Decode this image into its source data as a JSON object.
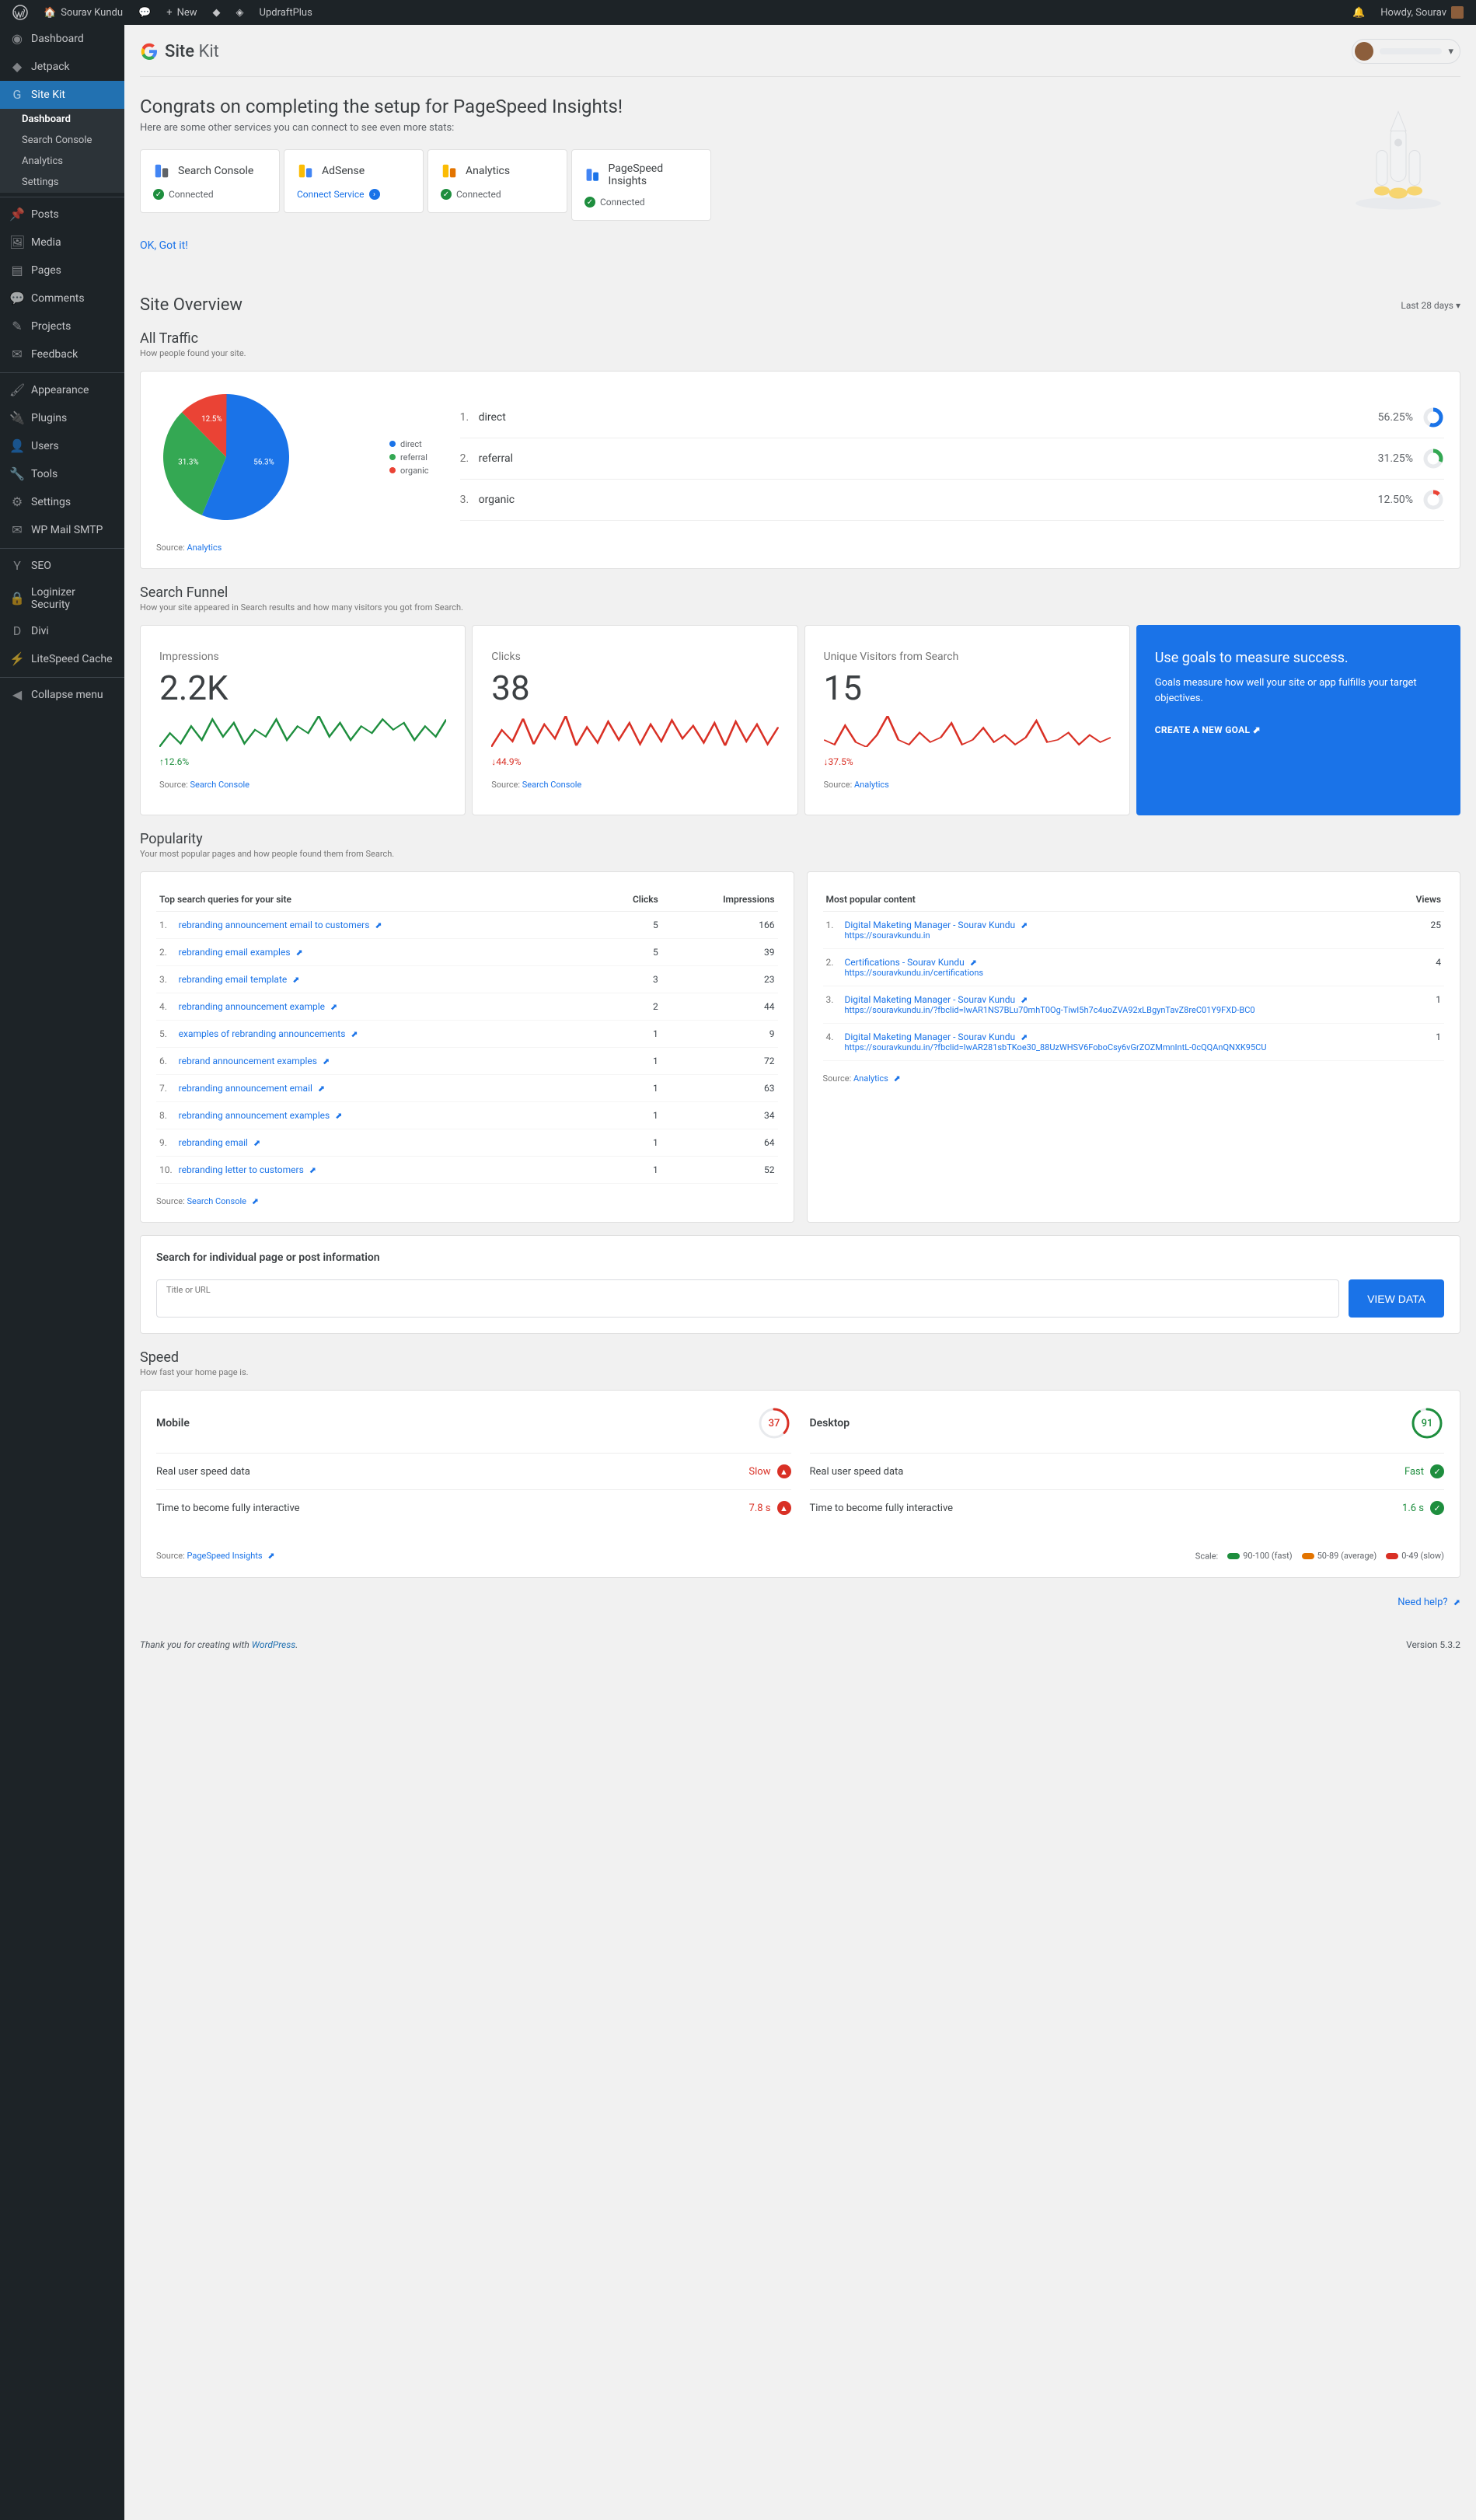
{
  "adminbar": {
    "site_name": "Sourav Kundu",
    "new_label": "New",
    "updraft": "UpdraftPlus",
    "howdy": "Howdy, Sourav"
  },
  "sidebar": {
    "items": [
      {
        "label": "Dashboard",
        "icon": "◉"
      },
      {
        "label": "Jetpack",
        "icon": "◆"
      },
      {
        "label": "Site Kit",
        "icon": "G",
        "active": true,
        "sub": [
          {
            "label": "Dashboard",
            "active": true
          },
          {
            "label": "Search Console"
          },
          {
            "label": "Analytics"
          },
          {
            "label": "Settings"
          }
        ]
      },
      {
        "label": "Posts",
        "icon": "📌",
        "sep": true
      },
      {
        "label": "Media",
        "icon": "🖼"
      },
      {
        "label": "Pages",
        "icon": "▤"
      },
      {
        "label": "Comments",
        "icon": "💬"
      },
      {
        "label": "Projects",
        "icon": "✎"
      },
      {
        "label": "Feedback",
        "icon": "✉"
      },
      {
        "label": "Appearance",
        "icon": "🖌",
        "sep": true
      },
      {
        "label": "Plugins",
        "icon": "🔌"
      },
      {
        "label": "Users",
        "icon": "👤"
      },
      {
        "label": "Tools",
        "icon": "🔧"
      },
      {
        "label": "Settings",
        "icon": "⚙"
      },
      {
        "label": "WP Mail SMTP",
        "icon": "✉"
      },
      {
        "label": "SEO",
        "icon": "Y",
        "sep": true
      },
      {
        "label": "Loginizer Security",
        "icon": "🔒"
      },
      {
        "label": "Divi",
        "icon": "D"
      },
      {
        "label": "LiteSpeed Cache",
        "icon": "⚡"
      },
      {
        "label": "Collapse menu",
        "icon": "◀",
        "sep": true
      }
    ]
  },
  "sitekit_header": {
    "word1": "Site",
    "word2": "Kit"
  },
  "congrats": {
    "title": "Congrats on completing the setup for PageSpeed Insights!",
    "subtitle": "Here are some other services you can connect to see even more stats:",
    "ok": "OK, Got it!",
    "services": [
      {
        "name": "Search Console",
        "status": "Connected",
        "connected": true,
        "colors": [
          "#4285f4",
          "#5f6368"
        ]
      },
      {
        "name": "AdSense",
        "status": "Connect Service",
        "connected": false,
        "colors": [
          "#fbbc04",
          "#4285f4"
        ]
      },
      {
        "name": "Analytics",
        "status": "Connected",
        "connected": true,
        "colors": [
          "#fbbc04",
          "#e37400"
        ]
      },
      {
        "name": "PageSpeed Insights",
        "status": "Connected",
        "connected": true,
        "colors": [
          "#4285f4",
          "#1a73e8"
        ]
      }
    ]
  },
  "overview": {
    "title": "Site Overview",
    "date_label": "Last 28 days"
  },
  "traffic": {
    "title": "All Traffic",
    "subtitle": "How people found your site.",
    "source_label": "Source:",
    "source_name": "Analytics",
    "legend": [
      {
        "label": "direct",
        "color": "#1a73e8"
      },
      {
        "label": "referral",
        "color": "#34a853"
      },
      {
        "label": "organic",
        "color": "#ea4335"
      }
    ],
    "slices": [
      {
        "label": "direct",
        "pct": 56.3,
        "color": "#1a73e8"
      },
      {
        "label": "referral",
        "pct": 31.3,
        "color": "#34a853"
      },
      {
        "label": "organic",
        "pct": 12.5,
        "color": "#ea4335"
      }
    ],
    "rows": [
      {
        "n": "1.",
        "label": "direct",
        "pct": "56.25%",
        "color": "#1a73e8",
        "val": 56.25
      },
      {
        "n": "2.",
        "label": "referral",
        "pct": "31.25%",
        "color": "#34a853",
        "val": 31.25
      },
      {
        "n": "3.",
        "label": "organic",
        "pct": "12.50%",
        "color": "#ea4335",
        "val": 12.5
      }
    ]
  },
  "funnel": {
    "title": "Search Funnel",
    "subtitle": "How your site appeared in Search results and how many visitors you got from Search.",
    "metrics": [
      {
        "label": "Impressions",
        "value": "2.2K",
        "delta": "12.6%",
        "dir": "up",
        "color": "#1e8e3e",
        "source": "Search Console",
        "spark": [
          18,
          22,
          19,
          24,
          20,
          26,
          21,
          25,
          19,
          23,
          21,
          26,
          20,
          24,
          22,
          27,
          21,
          25,
          20,
          24,
          22,
          26,
          23,
          25,
          20,
          24,
          21,
          26
        ]
      },
      {
        "label": "Clicks",
        "value": "38",
        "delta": "44.9%",
        "dir": "down",
        "color": "#d93025",
        "source": "Search Console",
        "spark": [
          8,
          20,
          12,
          28,
          10,
          24,
          14,
          30,
          9,
          22,
          11,
          26,
          13,
          25,
          10,
          24,
          12,
          27,
          14,
          23,
          11,
          25,
          9,
          26,
          12,
          24,
          10,
          22
        ]
      },
      {
        "label": "Unique Visitors from Search",
        "value": "15",
        "delta": "37.5%",
        "dir": "down",
        "color": "#d93025",
        "source": "Analytics",
        "spark": [
          12,
          10,
          18,
          11,
          9,
          14,
          22,
          12,
          10,
          15,
          11,
          13,
          19,
          10,
          12,
          17,
          11,
          14,
          10,
          13,
          20,
          11,
          12,
          15,
          10,
          14,
          11,
          13
        ]
      }
    ],
    "goals": {
      "title": "Use goals to measure success.",
      "body": "Goals measure how well your site or app fulfills your target objectives.",
      "cta": "CREATE A NEW GOAL"
    }
  },
  "popularity": {
    "title": "Popularity",
    "subtitle": "Your most popular pages and how people found them from Search.",
    "queries": {
      "title": "Top search queries for your site",
      "cols": [
        "Clicks",
        "Impressions"
      ],
      "source_label": "Source:",
      "source_name": "Search Console",
      "rows": [
        {
          "n": "1.",
          "q": "rebranding announcement email to customers",
          "clicks": 5,
          "imp": 166
        },
        {
          "n": "2.",
          "q": "rebranding email examples",
          "clicks": 5,
          "imp": 39
        },
        {
          "n": "3.",
          "q": "rebranding email template",
          "clicks": 3,
          "imp": 23
        },
        {
          "n": "4.",
          "q": "rebranding announcement example",
          "clicks": 2,
          "imp": 44
        },
        {
          "n": "5.",
          "q": "examples of rebranding announcements",
          "clicks": 1,
          "imp": 9
        },
        {
          "n": "6.",
          "q": "rebrand announcement examples",
          "clicks": 1,
          "imp": 72
        },
        {
          "n": "7.",
          "q": "rebranding announcement email",
          "clicks": 1,
          "imp": 63
        },
        {
          "n": "8.",
          "q": "rebranding announcement examples",
          "clicks": 1,
          "imp": 34
        },
        {
          "n": "9.",
          "q": "rebranding email",
          "clicks": 1,
          "imp": 64
        },
        {
          "n": "10.",
          "q": "rebranding letter to customers",
          "clicks": 1,
          "imp": 52
        }
      ]
    },
    "content": {
      "title": "Most popular content",
      "col": "Views",
      "source_label": "Source:",
      "source_name": "Analytics",
      "rows": [
        {
          "n": "1.",
          "title": "Digital Maketing Manager - Sourav Kundu",
          "url": "https://souravkundu.in",
          "views": 25
        },
        {
          "n": "2.",
          "title": "Certifications - Sourav Kundu",
          "url": "https://souravkundu.in/certifications",
          "views": 4
        },
        {
          "n": "3.",
          "title": "Digital Maketing Manager - Sourav Kundu",
          "url": "https://souravkundu.in/?fbclid=IwAR1NS7BLu70mhT0Og-TiwI5h7c4uoZVA92xLBgynTavZ8reC01Y9FXD-BC0",
          "views": 1
        },
        {
          "n": "4.",
          "title": "Digital Maketing Manager - Sourav Kundu",
          "url": "https://souravkundu.in/?fbclid=IwAR281sbTKoe30_88UzWHSV6FoboCsy6vGrZOZMmnIntL-0cQQAnQNXK95CU",
          "views": 1
        }
      ]
    }
  },
  "search_box": {
    "title": "Search for individual page or post information",
    "label": "Title or URL",
    "button": "VIEW DATA"
  },
  "speed": {
    "title": "Speed",
    "subtitle": "How fast your home page is.",
    "source_label": "Source:",
    "source_name": "PageSpeed Insights",
    "cols": [
      {
        "title": "Mobile",
        "score": 37,
        "color": "#d93025",
        "rows": [
          {
            "label": "Real user speed data",
            "val": "Slow",
            "bad": true
          },
          {
            "label": "Time to become fully interactive",
            "val": "7.8 s",
            "bad": true
          }
        ]
      },
      {
        "title": "Desktop",
        "score": 91,
        "color": "#1e8e3e",
        "rows": [
          {
            "label": "Real user speed data",
            "val": "Fast",
            "bad": false
          },
          {
            "label": "Time to become fully interactive",
            "val": "1.6 s",
            "bad": false
          }
        ]
      }
    ],
    "scale": {
      "label": "Scale:",
      "segs": [
        {
          "label": "90-100 (fast)",
          "color": "#1e8e3e"
        },
        {
          "label": "50-89 (average)",
          "color": "#e37400"
        },
        {
          "label": "0-49 (slow)",
          "color": "#d93025"
        }
      ]
    }
  },
  "help": "Need help?",
  "footer": {
    "thanks": "Thank you for creating with ",
    "wp": "WordPress",
    "version": "Version 5.3.2"
  }
}
